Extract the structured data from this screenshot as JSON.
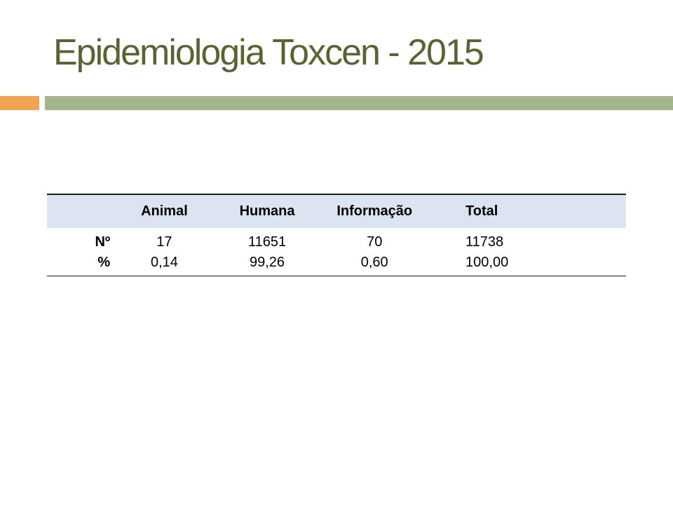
{
  "slide": {
    "title": "Epidemiologia Toxcen - 2015"
  },
  "colors": {
    "title_text": "#5a6332",
    "accent_orange": "#f0a350",
    "accent_green": "#a4b58a",
    "table_header_bg": "#dce3f1"
  },
  "table": {
    "columns": [
      "",
      "Animal",
      "Humana",
      "Informação",
      "Total"
    ],
    "rows": [
      {
        "label": "Nº",
        "cells": [
          "17",
          "11651",
          "70",
          "11738"
        ]
      },
      {
        "label": "%",
        "cells": [
          "0,14",
          "99,26",
          "0,60",
          "100,00"
        ]
      }
    ]
  }
}
